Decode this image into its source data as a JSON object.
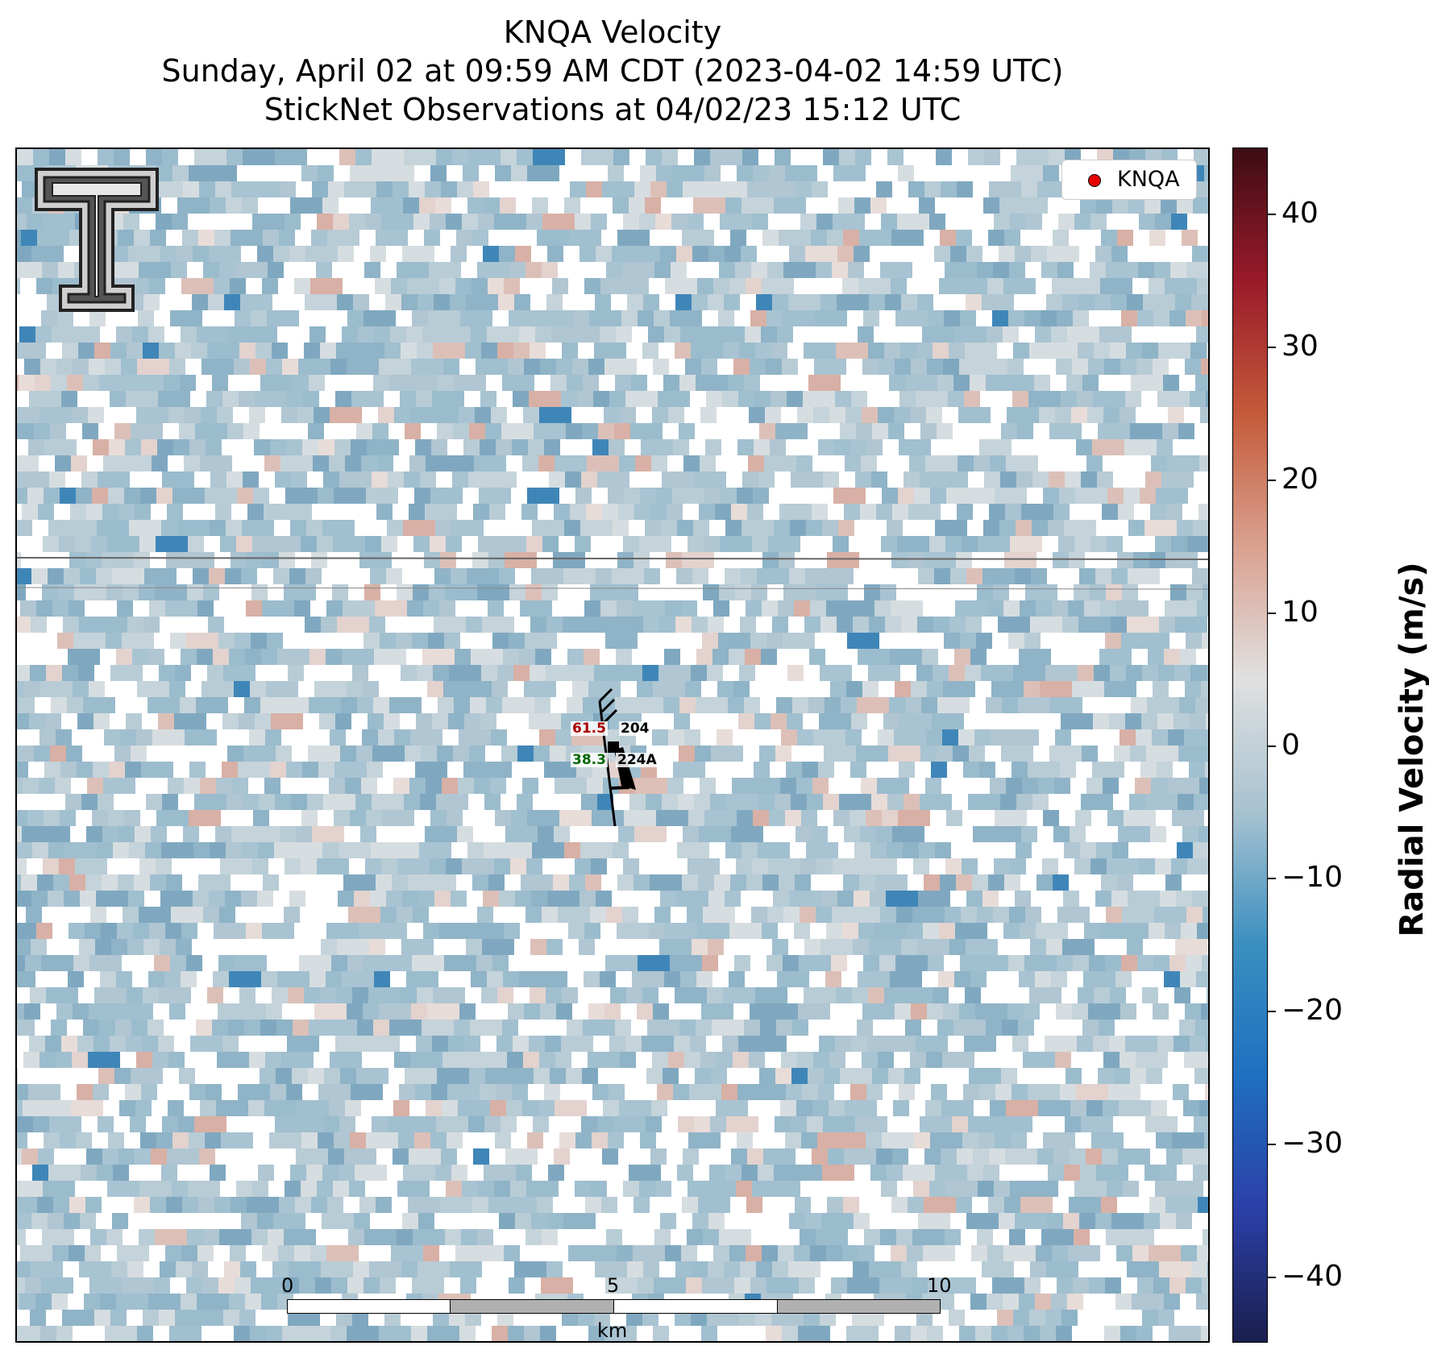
{
  "title_lines": [
    "KNQA Velocity",
    "Sunday, April 02 at 09:59 AM CDT (2023-04-02 14:59 UTC)",
    "StickNet Observations at 04/02/23 15:12 UTC"
  ],
  "legend": {
    "label": "KNQA",
    "marker_color": "#e60000"
  },
  "colorbar": {
    "label": "Radial Velocity (m/s)",
    "range": [
      -45,
      45
    ],
    "ticks": [
      40,
      30,
      20,
      10,
      0,
      -10,
      -20,
      -30,
      -40
    ],
    "tick_labels": [
      "40",
      "30",
      "20",
      "10",
      "0",
      "−10",
      "−20",
      "−30",
      "−40"
    ],
    "colors": [
      "#1a1f4e",
      "#2b3fa8",
      "#1f6fc0",
      "#3a8fc0",
      "#a7c2d0",
      "#e0e0e0",
      "#d9a08f",
      "#c45a3a",
      "#9a1a2a",
      "#3d0d14"
    ]
  },
  "stations": [
    {
      "id": "204",
      "value": "61.5",
      "value_color": "#aa0000"
    },
    {
      "id": "224A",
      "value": "38.3",
      "value_color": "#006600"
    }
  ],
  "scale_bar": {
    "labels": [
      "0",
      "5",
      "10"
    ],
    "unit": "km"
  },
  "logo": {
    "icon": "texas-tech-double-t-logo"
  }
}
